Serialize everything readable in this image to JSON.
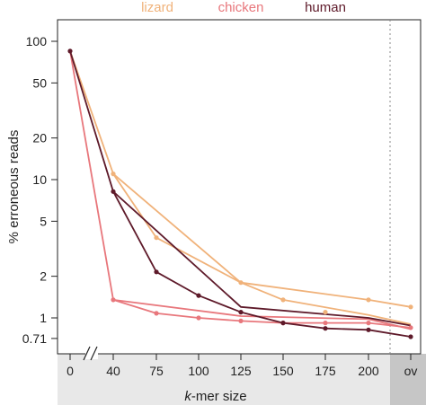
{
  "chart_data": {
    "type": "line",
    "title": "",
    "xlabel_prefix": "k",
    "xlabel_suffix": "-mer size",
    "ylabel": "% erroneous reads",
    "y_scale": "log",
    "ylim": [
      0.6,
      120
    ],
    "y_ticks": [
      100,
      50,
      20,
      10,
      5,
      2,
      1,
      0.71
    ],
    "x_ticks": [
      "0",
      "40",
      "75",
      "100",
      "125",
      "150",
      "175",
      "200",
      "ov"
    ],
    "x_axis_break_between": [
      "0",
      "40"
    ],
    "ov_separator": true,
    "shaded_band": [
      "k-mer size",
      "ov"
    ],
    "grid": false,
    "legend_placement": "top",
    "series": [
      {
        "name": "lizard",
        "color": "#f0b27a",
        "lines": [
          {
            "x": [
              "0",
              "40",
              "125",
              "150",
              "200",
              "ov"
            ],
            "y": [
              85,
              11,
              1.8,
              1.35,
              1.05,
              0.9
            ]
          },
          {
            "x": [
              "40",
              "75",
              "125",
              "200",
              "ov"
            ],
            "y": [
              11,
              3.8,
              1.8,
              1.35,
              1.2
            ]
          }
        ],
        "points": {
          "x": [
            "40",
            "75",
            "125",
            "150",
            "175",
            "200",
            "ov"
          ],
          "y": [
            11,
            3.8,
            1.8,
            1.35,
            1.1,
            1.35,
            1.2
          ]
        }
      },
      {
        "name": "chicken",
        "color": "#e8777c",
        "lines": [
          {
            "x": [
              "0",
              "40",
              "75",
              "100",
              "125",
              "150",
              "175",
              "200",
              "ov"
            ],
            "y": [
              85,
              1.35,
              1.08,
              1.0,
              0.95,
              0.92,
              0.92,
              0.92,
              0.85
            ]
          },
          {
            "x": [
              "40",
              "125",
              "200",
              "ov"
            ],
            "y": [
              1.35,
              1.03,
              0.98,
              0.83
            ]
          }
        ],
        "points": {
          "x": [
            "40",
            "75",
            "100",
            "125",
            "150",
            "175",
            "200",
            "ov"
          ],
          "y": [
            1.35,
            1.08,
            1.0,
            0.95,
            0.92,
            0.92,
            0.92,
            0.85
          ]
        }
      },
      {
        "name": "human",
        "color": "#5e1a2a",
        "lines": [
          {
            "x": [
              "0",
              "40",
              "75",
              "100",
              "125",
              "150",
              "175",
              "200",
              "ov"
            ],
            "y": [
              85,
              8.2,
              2.15,
              1.45,
              1.1,
              0.92,
              0.84,
              0.82,
              0.73
            ]
          },
          {
            "x": [
              "40",
              "125",
              "200",
              "ov"
            ],
            "y": [
              8.2,
              1.2,
              1.0,
              0.88
            ]
          }
        ],
        "points": {
          "x": [
            "0",
            "40",
            "75",
            "100",
            "125",
            "150",
            "175",
            "200",
            "ov"
          ],
          "y": [
            85,
            8.2,
            2.15,
            1.45,
            1.1,
            0.92,
            0.84,
            0.82,
            0.73
          ]
        }
      }
    ]
  }
}
